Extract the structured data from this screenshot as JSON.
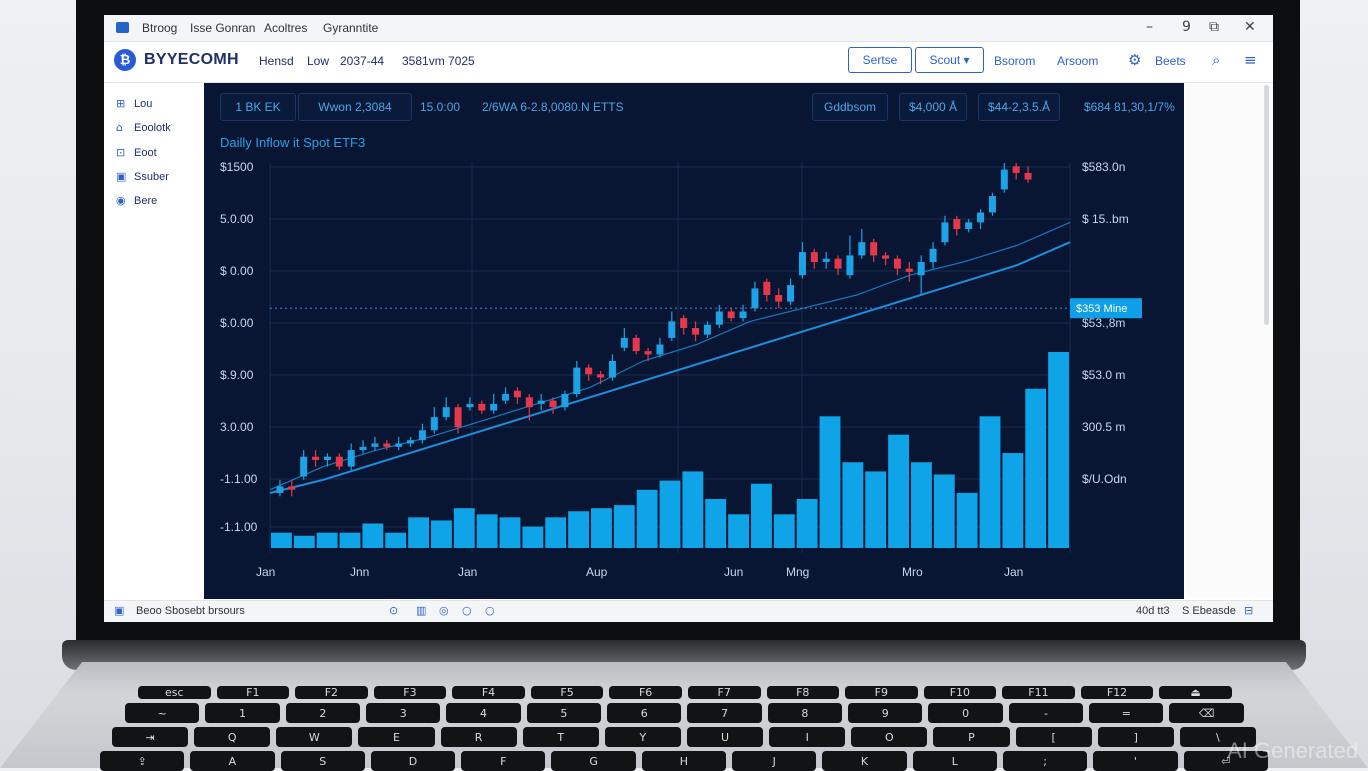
{
  "window": {
    "tabs": [
      "Btroog",
      "Isse Gonran",
      "Acoltres",
      "Gyranntite"
    ],
    "controls": [
      "–",
      "9",
      "⧉",
      "✕"
    ]
  },
  "toolbar": {
    "logo_glyph": "₿",
    "brand": "BYYECOMH",
    "meta": [
      "Hensd",
      "Low",
      "2037-44",
      "3581vm 7025"
    ],
    "buttons": [
      "Sertse",
      "Scout ▾"
    ],
    "links": [
      "Bsorom",
      "Arsoom"
    ],
    "right_icon": "settings-icon",
    "right_label": "Beets",
    "icons": [
      "search-icon",
      "menu-icon"
    ]
  },
  "sidebar": {
    "items": [
      {
        "icon": "grid-icon",
        "label": "Lou"
      },
      {
        "icon": "home-icon",
        "label": "Eoolotk"
      },
      {
        "icon": "lock-icon",
        "label": "Eoot"
      },
      {
        "icon": "bag-icon",
        "label": "Ssuber"
      },
      {
        "icon": "globe-icon",
        "label": "Bere"
      }
    ]
  },
  "chart_header": {
    "chips": [
      "1 BK EK",
      "Wwon 2,3084"
    ],
    "texts": [
      "15.0:00",
      "2/6WA 6-2.8,0080.N ETTS"
    ],
    "right_chips": [
      "Gddbsom",
      "$4,000 Å",
      "$44-2,3.5.Å"
    ],
    "right_text": "$684 81,30,1/7%"
  },
  "chart_data": {
    "type": "candlestick",
    "title": "Dailly Inflow it Spot ETF3",
    "y_tick_labels": [
      "$1500",
      "5.0.00",
      "$ 0.00",
      "$.0.00",
      "$.9.00",
      "3.0.00",
      "-1.1.00",
      "-1.1.00"
    ],
    "y_right_tick_labels": [
      "$583.0n",
      "$ 15..bm",
      "$53.,8m",
      "$53.0 m",
      "300.5 m",
      "$/U.Odn"
    ],
    "x_tick_labels": [
      "Jan",
      "Jnn",
      "Jan",
      "Aup",
      "Jun",
      "Mng",
      "Mro",
      "Jan"
    ],
    "price_marker_label": "$353 Mine",
    "candles": [
      {
        "o": 0.0,
        "c": 0.02,
        "h": 0.04,
        "l": -0.01
      },
      {
        "o": 0.02,
        "c": 0.01,
        "h": 0.04,
        "l": -0.01
      },
      {
        "o": 0.05,
        "c": 0.11,
        "h": 0.13,
        "l": 0.04
      },
      {
        "o": 0.11,
        "c": 0.1,
        "h": 0.13,
        "l": 0.08
      },
      {
        "o": 0.1,
        "c": 0.11,
        "h": 0.12,
        "l": 0.08
      },
      {
        "o": 0.11,
        "c": 0.08,
        "h": 0.12,
        "l": 0.07
      },
      {
        "o": 0.08,
        "c": 0.13,
        "h": 0.15,
        "l": 0.07
      },
      {
        "o": 0.13,
        "c": 0.14,
        "h": 0.16,
        "l": 0.12
      },
      {
        "o": 0.14,
        "c": 0.15,
        "h": 0.17,
        "l": 0.13
      },
      {
        "o": 0.15,
        "c": 0.14,
        "h": 0.16,
        "l": 0.13
      },
      {
        "o": 0.14,
        "c": 0.15,
        "h": 0.17,
        "l": 0.13
      },
      {
        "o": 0.15,
        "c": 0.16,
        "h": 0.17,
        "l": 0.14
      },
      {
        "o": 0.16,
        "c": 0.19,
        "h": 0.21,
        "l": 0.15
      },
      {
        "o": 0.19,
        "c": 0.23,
        "h": 0.26,
        "l": 0.18
      },
      {
        "o": 0.23,
        "c": 0.26,
        "h": 0.29,
        "l": 0.22
      },
      {
        "o": 0.26,
        "c": 0.2,
        "h": 0.27,
        "l": 0.18
      },
      {
        "o": 0.26,
        "c": 0.27,
        "h": 0.29,
        "l": 0.25
      },
      {
        "o": 0.27,
        "c": 0.25,
        "h": 0.28,
        "l": 0.24
      },
      {
        "o": 0.25,
        "c": 0.27,
        "h": 0.3,
        "l": 0.24
      },
      {
        "o": 0.28,
        "c": 0.3,
        "h": 0.32,
        "l": 0.27
      },
      {
        "o": 0.31,
        "c": 0.29,
        "h": 0.32,
        "l": 0.27
      },
      {
        "o": 0.29,
        "c": 0.26,
        "h": 0.3,
        "l": 0.22
      },
      {
        "o": 0.27,
        "c": 0.28,
        "h": 0.3,
        "l": 0.25
      },
      {
        "o": 0.28,
        "c": 0.26,
        "h": 0.29,
        "l": 0.24
      },
      {
        "o": 0.26,
        "c": 0.3,
        "h": 0.31,
        "l": 0.25
      },
      {
        "o": 0.3,
        "c": 0.38,
        "h": 0.4,
        "l": 0.29
      },
      {
        "o": 0.38,
        "c": 0.36,
        "h": 0.39,
        "l": 0.34
      },
      {
        "o": 0.36,
        "c": 0.35,
        "h": 0.37,
        "l": 0.33
      },
      {
        "o": 0.35,
        "c": 0.4,
        "h": 0.42,
        "l": 0.34
      },
      {
        "o": 0.44,
        "c": 0.47,
        "h": 0.5,
        "l": 0.43
      },
      {
        "o": 0.47,
        "c": 0.43,
        "h": 0.48,
        "l": 0.42
      },
      {
        "o": 0.43,
        "c": 0.42,
        "h": 0.44,
        "l": 0.4
      },
      {
        "o": 0.42,
        "c": 0.45,
        "h": 0.47,
        "l": 0.41
      },
      {
        "o": 0.47,
        "c": 0.52,
        "h": 0.55,
        "l": 0.46
      },
      {
        "o": 0.53,
        "c": 0.5,
        "h": 0.54,
        "l": 0.48
      },
      {
        "o": 0.5,
        "c": 0.48,
        "h": 0.52,
        "l": 0.46
      },
      {
        "o": 0.48,
        "c": 0.51,
        "h": 0.52,
        "l": 0.47
      },
      {
        "o": 0.51,
        "c": 0.55,
        "h": 0.57,
        "l": 0.5
      },
      {
        "o": 0.55,
        "c": 0.53,
        "h": 0.56,
        "l": 0.52
      },
      {
        "o": 0.53,
        "c": 0.55,
        "h": 0.57,
        "l": 0.52
      },
      {
        "o": 0.56,
        "c": 0.62,
        "h": 0.64,
        "l": 0.55
      },
      {
        "o": 0.64,
        "c": 0.6,
        "h": 0.65,
        "l": 0.58
      },
      {
        "o": 0.6,
        "c": 0.58,
        "h": 0.62,
        "l": 0.56
      },
      {
        "o": 0.58,
        "c": 0.63,
        "h": 0.65,
        "l": 0.57
      },
      {
        "o": 0.66,
        "c": 0.73,
        "h": 0.76,
        "l": 0.65
      },
      {
        "o": 0.73,
        "c": 0.7,
        "h": 0.74,
        "l": 0.68
      },
      {
        "o": 0.7,
        "c": 0.71,
        "h": 0.73,
        "l": 0.68
      },
      {
        "o": 0.71,
        "c": 0.68,
        "h": 0.72,
        "l": 0.66
      },
      {
        "o": 0.66,
        "c": 0.72,
        "h": 0.78,
        "l": 0.65
      },
      {
        "o": 0.72,
        "c": 0.76,
        "h": 0.8,
        "l": 0.71
      },
      {
        "o": 0.76,
        "c": 0.72,
        "h": 0.77,
        "l": 0.7
      },
      {
        "o": 0.72,
        "c": 0.71,
        "h": 0.73,
        "l": 0.69
      },
      {
        "o": 0.71,
        "c": 0.68,
        "h": 0.72,
        "l": 0.66
      },
      {
        "o": 0.68,
        "c": 0.67,
        "h": 0.7,
        "l": 0.64
      },
      {
        "o": 0.66,
        "c": 0.7,
        "h": 0.72,
        "l": 0.6
      },
      {
        "o": 0.7,
        "c": 0.74,
        "h": 0.76,
        "l": 0.68
      },
      {
        "o": 0.76,
        "c": 0.82,
        "h": 0.84,
        "l": 0.75
      },
      {
        "o": 0.83,
        "c": 0.8,
        "h": 0.84,
        "l": 0.78
      },
      {
        "o": 0.8,
        "c": 0.82,
        "h": 0.83,
        "l": 0.79
      },
      {
        "o": 0.82,
        "c": 0.85,
        "h": 0.86,
        "l": 0.8
      },
      {
        "o": 0.85,
        "c": 0.9,
        "h": 0.91,
        "l": 0.84
      },
      {
        "o": 0.92,
        "c": 0.98,
        "h": 1.0,
        "l": 0.91
      },
      {
        "o": 0.99,
        "c": 0.97,
        "h": 1.0,
        "l": 0.95
      },
      {
        "o": 0.97,
        "c": 0.95,
        "h": 0.99,
        "l": 0.94
      }
    ],
    "trend_lines": {
      "ma_fast": [
        0.01,
        0.08,
        0.13,
        0.17,
        0.22,
        0.27,
        0.32,
        0.4,
        0.45,
        0.52,
        0.56,
        0.6,
        0.66,
        0.7,
        0.75,
        0.82
      ],
      "ma_slow": [
        0.0,
        0.04,
        0.09,
        0.14,
        0.19,
        0.24,
        0.29,
        0.34,
        0.39,
        0.44,
        0.49,
        0.54,
        0.59,
        0.64,
        0.69,
        0.76
      ]
    },
    "volume": [
      0.05,
      0.04,
      0.05,
      0.05,
      0.08,
      0.05,
      0.1,
      0.09,
      0.13,
      0.11,
      0.1,
      0.07,
      0.1,
      0.12,
      0.13,
      0.14,
      0.19,
      0.22,
      0.25,
      0.16,
      0.11,
      0.21,
      0.11,
      0.16,
      0.43,
      0.28,
      0.25,
      0.37,
      0.28,
      0.24,
      0.18,
      0.43,
      0.31,
      0.52,
      0.64
    ],
    "dotted_level": 0.56,
    "colors": {
      "up": "#1ea2e6",
      "down": "#e5384a",
      "volume": "#0fa3e8",
      "trend": "#1e8ee0",
      "grid": "#1a2c52"
    }
  },
  "statusbar": {
    "left_label": "Beoo Sbosebt brsours",
    "center_icons": [
      "settings-icon",
      "page-icon",
      "circle-icon",
      "circle-icon",
      "circle-icon"
    ],
    "right_label": "S Ebeasde",
    "right_small": "40d tt3"
  },
  "keyboard": {
    "rows": [
      [
        "esc",
        "F1",
        "F2",
        "F3",
        "F4",
        "F5",
        "F6",
        "F7",
        "F8",
        "F9",
        "F10",
        "F11",
        "F12",
        "⏏"
      ],
      [
        "~",
        "1",
        "2",
        "3",
        "4",
        "5",
        "6",
        "7",
        "8",
        "9",
        "0",
        "-",
        "=",
        "⌫"
      ],
      [
        "⇥",
        "Q",
        "W",
        "E",
        "R",
        "T",
        "Y",
        "U",
        "I",
        "O",
        "P",
        "[",
        "]",
        "\\"
      ],
      [
        "⇪",
        "A",
        "S",
        "D",
        "F",
        "G",
        "H",
        "J",
        "K",
        "L",
        ";",
        "'",
        "⏎"
      ]
    ]
  },
  "watermark": "AI Generated"
}
